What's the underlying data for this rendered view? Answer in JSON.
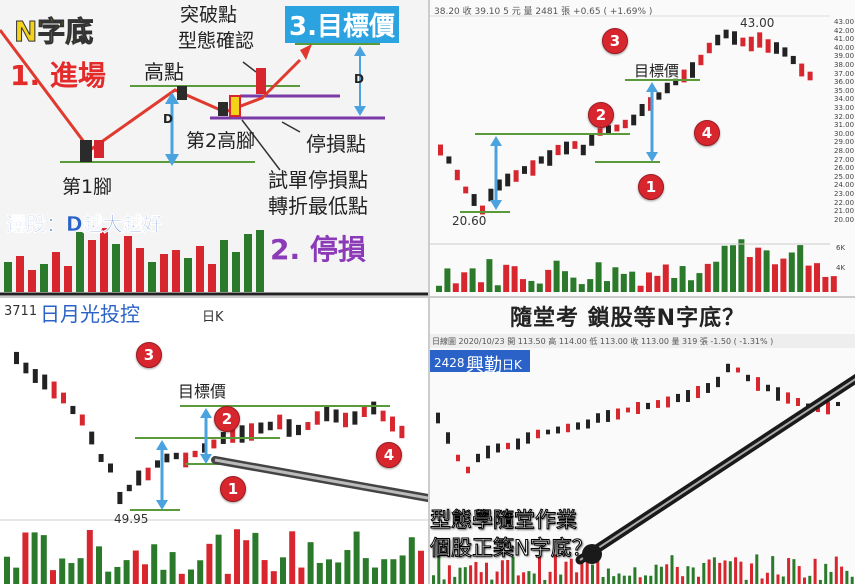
{
  "top_left": {
    "title": "N字底",
    "step1": "1. 進場",
    "step2": "2. 停損",
    "step3": "3.目標價",
    "high_point": "高點",
    "breakout": "突破點",
    "pattern_confirm": "型態確認",
    "d_left": "D",
    "d_right": "D",
    "foot1": "第1腳",
    "foot2": "第2高腳",
    "stop_loss_point": "停損點",
    "trial_stop": "試單停損點",
    "turn_low": "轉折最低點",
    "select_rule": "選股：D越大越好"
  },
  "top_right": {
    "header": "38.20 收 39.10 5 元 量 2481 張 +0.65 ( +1.69% )",
    "high_label": "43.00",
    "low_label": "20.60",
    "target_label": "目標價",
    "markers": [
      "1",
      "2",
      "3",
      "4"
    ],
    "price_axis": [
      "43.00",
      "42.00",
      "41.00",
      "40.00",
      "39.00",
      "38.00",
      "37.00",
      "36.00",
      "35.00",
      "34.00",
      "33.00",
      "32.00",
      "31.00",
      "30.00",
      "29.00",
      "28.00",
      "27.00",
      "26.00",
      "25.00",
      "24.00",
      "23.00",
      "22.00",
      "21.00",
      "20.00"
    ],
    "vol_axis": [
      "6K",
      "4K"
    ]
  },
  "bottom_left": {
    "stock_code": "3711",
    "stock_name": "日月光投控",
    "period": "日K",
    "target_label": "目標價",
    "low_label": "49.95",
    "markers": [
      "1",
      "2",
      "3",
      "4"
    ]
  },
  "bottom_right": {
    "headline": "隨堂考 鎖股等N字底？",
    "header_info": "日線圖 2020/10/23 開 113.50 高 114.00 低 113.00 收 113.00 量 319 張 -1.50 ( -1.31% )",
    "stock_code": "2428",
    "stock_name": "興勤",
    "period": "日K",
    "subtitle_line1": "型態學隨堂作業",
    "subtitle_line2": "個股正築N字底？"
  },
  "colors": {
    "up": "#d8262f",
    "down": "#2b7a2b",
    "n_line": "#e03a2f",
    "d_arrow": "#4aa3df",
    "stop_line": "#7a3aa8",
    "support_line": "#5a9a3a"
  }
}
